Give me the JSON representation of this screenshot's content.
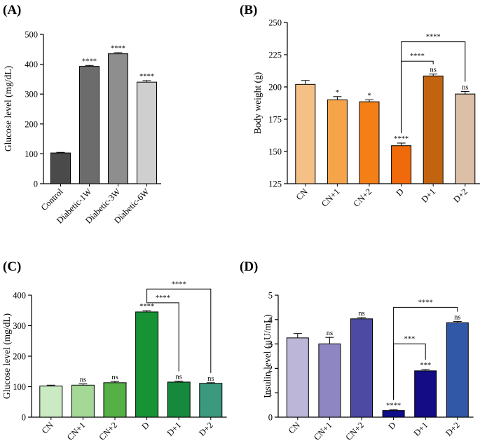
{
  "chart_data": [
    {
      "panel": "(A)",
      "type": "bar",
      "ylabel": "Glucose level (mg/dL)",
      "xlabel": "",
      "ylim": [
        0,
        500
      ],
      "yticks": [
        "0",
        "100",
        "200",
        "300",
        "400",
        "500"
      ],
      "categories": [
        "Control",
        "Diabetic-1W",
        "Diabetic-3W",
        "Diabetic-6W"
      ],
      "values": [
        103,
        393,
        435,
        340
      ],
      "errors": [
        2,
        3,
        4,
        5
      ],
      "colors": [
        "#4a4a4a",
        "#6c6c6c",
        "#8e8e8e",
        "#cfcfcf"
      ],
      "significance": [
        "",
        "****",
        "****",
        "****"
      ],
      "rotated_labels": true,
      "brackets": []
    },
    {
      "panel": "(B)",
      "type": "bar",
      "ylabel": "Body weight (g)",
      "xlabel": "",
      "ylim": [
        125,
        250
      ],
      "yticks": [
        "125",
        "150",
        "175",
        "200",
        "225",
        "250"
      ],
      "categories": [
        "CN",
        "CN+1",
        "CN+2",
        "D",
        "D+1",
        "D+2"
      ],
      "values": [
        202,
        190,
        188.5,
        154.5,
        208.5,
        194.5
      ],
      "errors": [
        3,
        2.5,
        1.5,
        2,
        1.5,
        2
      ],
      "colors": [
        "#f5c085",
        "#f6a449",
        "#f57f17",
        "#f06a0c",
        "#c2640f",
        "#dbbfa6"
      ],
      "significance": [
        "",
        "*",
        "*",
        "****",
        "ns",
        "ns"
      ],
      "rotated_labels": true,
      "brackets": [
        {
          "from": 3,
          "to": 4,
          "height": 220,
          "label": "****"
        },
        {
          "from": 3,
          "to": 5,
          "height": 235,
          "label": "****"
        }
      ]
    },
    {
      "panel": "(C)",
      "type": "bar",
      "ylabel": "Glucose level (mg/dL)",
      "xlabel": "",
      "ylim": [
        0,
        400
      ],
      "yticks": [
        "0",
        "100",
        "200",
        "300",
        "400"
      ],
      "categories": [
        "CN",
        "CN+1",
        "CN+2",
        "D",
        "D+1",
        "D+2"
      ],
      "values": [
        102,
        105,
        113,
        345,
        115,
        111
      ],
      "errors": [
        3,
        4,
        4,
        4,
        3,
        2
      ],
      "colors": [
        "#c9eac2",
        "#a3d896",
        "#55b046",
        "#179336",
        "#17893d",
        "#3b9a7d"
      ],
      "significance": [
        "",
        "ns",
        "ns",
        "****",
        "ns",
        "ns"
      ],
      "rotated_labels": true,
      "brackets": [
        {
          "from": 3,
          "to": 4,
          "height": 375,
          "label": "****"
        },
        {
          "from": 3,
          "to": 5,
          "height": 420,
          "label": "****"
        }
      ]
    },
    {
      "panel": "(D)",
      "type": "bar",
      "ylabel": "Insulin level (µU/mL)",
      "xlabel": "",
      "ylim": [
        0,
        5
      ],
      "yticks": [
        "0",
        "1",
        "2",
        "3",
        "4",
        "5"
      ],
      "categories": [
        "CN",
        "CN+1",
        "CN+2",
        "D",
        "D+1",
        "D+2"
      ],
      "values": [
        3.25,
        3.0,
        4.03,
        0.27,
        1.9,
        3.87
      ],
      "errors": [
        0.18,
        0.27,
        0.05,
        0.03,
        0.05,
        0.05
      ],
      "colors": [
        "#bcb6d9",
        "#8d86c2",
        "#4c4aa2",
        "#0e0e8c",
        "#130c84",
        "#3158a6"
      ],
      "significance": [
        "",
        "ns",
        "ns",
        "****",
        "***",
        "ns"
      ],
      "rotated_labels": true,
      "brackets": [
        {
          "from": 3,
          "to": 4,
          "height": 3.0,
          "label": "***"
        },
        {
          "from": 3,
          "to": 5,
          "height": 4.5,
          "label": "****"
        }
      ]
    }
  ]
}
